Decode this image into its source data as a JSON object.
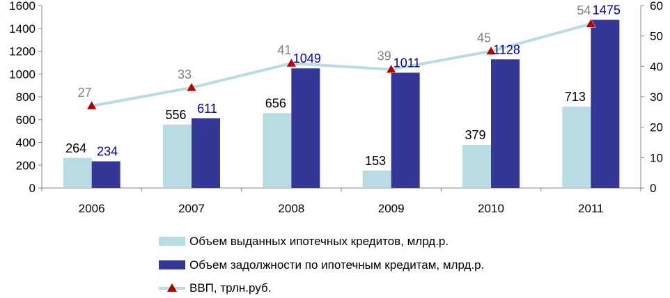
{
  "chart_data": {
    "type": "bar",
    "categories": [
      "2006",
      "2007",
      "2008",
      "2009",
      "2010",
      "2011"
    ],
    "y_left": {
      "min": 0,
      "max": 1600,
      "step": 200
    },
    "y_right": {
      "min": 0,
      "max": 60,
      "step": 10
    },
    "series": [
      {
        "name": "Объем выданных ипотечных кредитов, млрд.р.",
        "kind": "bar",
        "axis": "left",
        "color": "#b7dde2",
        "label_color": "#000000",
        "values": [
          264,
          556,
          656,
          153,
          379,
          713
        ]
      },
      {
        "name": "Объем задолжности по ипотечным кредитам, млрд.р.",
        "kind": "bar",
        "axis": "left",
        "color": "#353797",
        "label_color": "#0000a0",
        "values": [
          234,
          611,
          1049,
          1011,
          1128,
          1475
        ]
      },
      {
        "name": "ВВП, трлн.руб.",
        "kind": "line",
        "axis": "right",
        "color": "#b7dde2",
        "marker_color": "#b00000",
        "label_color": "#808080",
        "values": [
          27,
          33,
          41,
          39,
          45,
          54
        ]
      }
    ],
    "legend_position": "bottom",
    "grid": false
  }
}
